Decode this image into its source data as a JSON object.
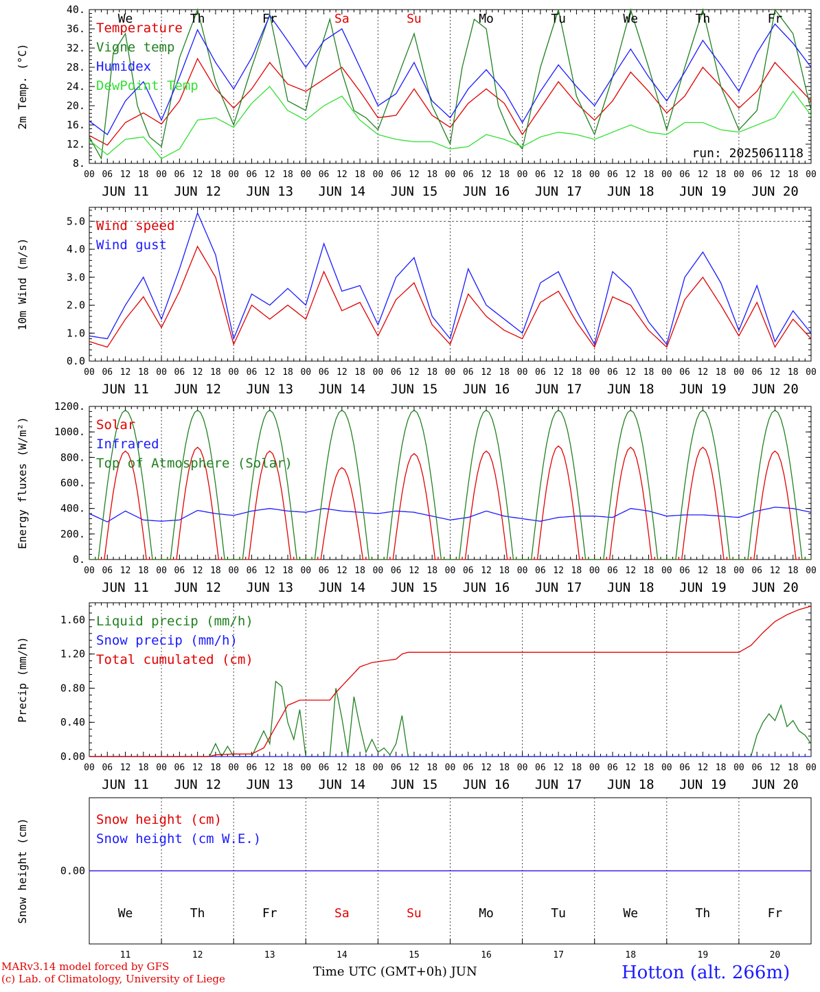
{
  "days": [
    "JUN 11",
    "JUN 12",
    "JUN 13",
    "JUN 14",
    "JUN 15",
    "JUN 16",
    "JUN 17",
    "JUN 18",
    "JUN 19",
    "JUN 20"
  ],
  "day_numbers": [
    "11",
    "12",
    "13",
    "14",
    "15",
    "16",
    "17",
    "18",
    "19",
    "20"
  ],
  "hour_ticks": [
    "00",
    "06",
    "12",
    "18"
  ],
  "final_tick": "00",
  "weekdays": [
    {
      "label": "We",
      "color": "#000000"
    },
    {
      "label": "Th",
      "color": "#000000"
    },
    {
      "label": "Fr",
      "color": "#000000"
    },
    {
      "label": "Sa",
      "color": "#e00000"
    },
    {
      "label": "Su",
      "color": "#e00000"
    },
    {
      "label": "Mo",
      "color": "#000000"
    },
    {
      "label": "Tu",
      "color": "#000000"
    },
    {
      "label": "We",
      "color": "#000000"
    },
    {
      "label": "Th",
      "color": "#000000"
    },
    {
      "label": "Fr",
      "color": "#000000"
    }
  ],
  "footer": {
    "credit_line1": "MARv3.14 model forced by GFS",
    "credit_line2": "(c) Lab. of Climatology, University of Liege",
    "time_axis": "Time UTC (GMT+0h) JUN",
    "station": "Hotton (alt. 266m)"
  },
  "chart_data": [
    {
      "type": "line",
      "ylabel": "2m Temp. (°C)",
      "ylim": [
        8,
        40
      ],
      "yticks": [
        "8.",
        "12.",
        "16.",
        "20.",
        "24.",
        "28.",
        "32.",
        "36.",
        "40."
      ],
      "run_label": "run: 2025061118",
      "x_unit": "hours since JUN 11 00 UTC",
      "series": [
        {
          "name": "Temperature",
          "color": "#e00000",
          "x": [
            0,
            6,
            12,
            18,
            24,
            30,
            36,
            42,
            48,
            54,
            60,
            66,
            72,
            78,
            84,
            90,
            96,
            102,
            108,
            114,
            120,
            126,
            132,
            138,
            144,
            150,
            156,
            162,
            168,
            174,
            180,
            186,
            192,
            198,
            204,
            210,
            216,
            222,
            228,
            234,
            240
          ],
          "values": [
            13.8,
            11.8,
            16.5,
            18.5,
            16.2,
            21,
            29.8,
            23.5,
            19.5,
            23.5,
            29,
            24.5,
            23,
            25.5,
            28,
            23,
            17.5,
            18,
            23.5,
            18,
            15.5,
            20.5,
            23.5,
            20.5,
            14,
            19.5,
            25,
            20.5,
            17,
            21,
            27,
            23,
            18.5,
            22,
            28,
            24,
            19.5,
            23,
            29,
            25,
            21
          ]
        },
        {
          "name": "Vigne temp",
          "color": "#208020",
          "x": [
            0,
            4,
            8,
            12,
            16,
            20,
            24,
            30,
            36,
            42,
            48,
            54,
            60,
            66,
            72,
            76,
            80,
            84,
            88,
            92,
            96,
            102,
            108,
            114,
            120,
            124,
            128,
            132,
            136,
            140,
            144,
            150,
            156,
            162,
            168,
            174,
            180,
            186,
            192,
            198,
            204,
            210,
            216,
            222,
            228,
            234,
            240
          ],
          "values": [
            13.5,
            9,
            31,
            35,
            20,
            13.5,
            11.5,
            30,
            40,
            25,
            16,
            28,
            39,
            21,
            19,
            30,
            38,
            27,
            19,
            17.5,
            15,
            25,
            35,
            20,
            12,
            28,
            38,
            36,
            20,
            14,
            11,
            28,
            40,
            22,
            14,
            26,
            40,
            28,
            15,
            28,
            40,
            24,
            15,
            19,
            40,
            35,
            19
          ]
        },
        {
          "name": "Humidex",
          "color": "#1a1aff",
          "x": [
            0,
            6,
            12,
            18,
            24,
            30,
            36,
            42,
            48,
            54,
            60,
            66,
            72,
            78,
            84,
            90,
            96,
            102,
            108,
            114,
            120,
            126,
            132,
            138,
            144,
            150,
            156,
            162,
            168,
            174,
            180,
            186,
            192,
            198,
            204,
            210,
            216,
            222,
            228,
            234,
            240
          ],
          "values": [
            16.8,
            14,
            21,
            25,
            17,
            26,
            35.8,
            29,
            23.5,
            30,
            38.8,
            33.5,
            28,
            33.5,
            36,
            28,
            20,
            22.5,
            29,
            21,
            17.5,
            23.5,
            27.5,
            23,
            16.5,
            23,
            28.5,
            24,
            20,
            26,
            31.8,
            26,
            21,
            27,
            33.6,
            28.5,
            23,
            31,
            37,
            33,
            28
          ]
        },
        {
          "name": "DewPoint Temp",
          "color": "#33e033",
          "x": [
            0,
            6,
            12,
            18,
            24,
            30,
            36,
            42,
            48,
            54,
            60,
            66,
            72,
            78,
            84,
            90,
            96,
            102,
            108,
            114,
            120,
            126,
            132,
            138,
            144,
            150,
            156,
            162,
            168,
            174,
            180,
            186,
            192,
            198,
            204,
            210,
            216,
            222,
            228,
            234,
            240
          ],
          "values": [
            12.8,
            9.8,
            13,
            13.5,
            9,
            11,
            17,
            17.5,
            15.5,
            20.5,
            24,
            19,
            17,
            20,
            22,
            17,
            14,
            13,
            12.5,
            12.5,
            11,
            11.5,
            14,
            13,
            11.5,
            13.5,
            14.5,
            14,
            13,
            14.5,
            16,
            14.5,
            14,
            16.5,
            16.5,
            15,
            14.5,
            16,
            17.5,
            23,
            18
          ]
        }
      ]
    },
    {
      "type": "line",
      "ylabel": "10m Wind (m/s)",
      "ylim": [
        0,
        5.5
      ],
      "yticks": [
        "0.0",
        "1.0",
        "2.0",
        "3.0",
        "4.0",
        "5.0"
      ],
      "ref_line": 5.0,
      "x_unit": "hours since JUN 11 00 UTC",
      "series": [
        {
          "name": "Wind speed",
          "color": "#e00000",
          "x": [
            0,
            6,
            12,
            18,
            24,
            30,
            36,
            42,
            48,
            54,
            60,
            66,
            72,
            78,
            84,
            90,
            96,
            102,
            108,
            114,
            120,
            126,
            132,
            138,
            144,
            150,
            156,
            162,
            168,
            174,
            180,
            186,
            192,
            198,
            204,
            210,
            216,
            222,
            228,
            234,
            240
          ],
          "values": [
            0.7,
            0.5,
            1.5,
            2.3,
            1.2,
            2.5,
            4.1,
            3.0,
            0.6,
            2.0,
            1.5,
            2.0,
            1.5,
            3.2,
            1.8,
            2.1,
            0.9,
            2.2,
            2.8,
            1.3,
            0.6,
            2.4,
            1.6,
            1.1,
            0.8,
            2.1,
            2.5,
            1.4,
            0.5,
            2.3,
            2.0,
            1.1,
            0.5,
            2.2,
            3.0,
            2.0,
            0.9,
            2.1,
            0.5,
            1.5,
            0.8
          ]
        },
        {
          "name": "Wind gust",
          "color": "#1a1aff",
          "x": [
            0,
            6,
            12,
            18,
            24,
            30,
            36,
            42,
            48,
            54,
            60,
            66,
            72,
            78,
            84,
            90,
            96,
            102,
            108,
            114,
            120,
            126,
            132,
            138,
            144,
            150,
            156,
            162,
            168,
            174,
            180,
            186,
            192,
            198,
            204,
            210,
            216,
            222,
            228,
            234,
            240
          ],
          "values": [
            0.9,
            0.8,
            2.0,
            3.0,
            1.5,
            3.3,
            5.3,
            3.8,
            0.8,
            2.4,
            2.0,
            2.6,
            2.0,
            4.2,
            2.5,
            2.7,
            1.3,
            3.0,
            3.7,
            1.6,
            0.8,
            3.3,
            2.0,
            1.5,
            1.0,
            2.8,
            3.2,
            1.8,
            0.6,
            3.2,
            2.6,
            1.4,
            0.6,
            3.0,
            3.9,
            2.8,
            1.1,
            2.7,
            0.7,
            1.8,
            1.0
          ]
        }
      ]
    },
    {
      "type": "line",
      "ylabel": "Energy fluxes (W/m²)",
      "ylim": [
        0,
        1200
      ],
      "yticks": [
        "0.",
        "200.",
        "400.",
        "600.",
        "800.",
        "1000.",
        "1200."
      ],
      "x_unit": "hours since JUN 11 00 UTC",
      "series": [
        {
          "name": "Solar",
          "color": "#e00000",
          "daily_peaks": [
            850,
            880,
            850,
            720,
            830,
            850,
            890,
            880,
            880,
            850
          ]
        },
        {
          "name": "Infrared",
          "color": "#1a1aff",
          "x": [
            0,
            6,
            12,
            18,
            24,
            30,
            36,
            42,
            48,
            54,
            60,
            66,
            72,
            78,
            84,
            90,
            96,
            102,
            108,
            114,
            120,
            126,
            132,
            138,
            144,
            150,
            156,
            162,
            168,
            174,
            180,
            186,
            192,
            198,
            204,
            210,
            216,
            222,
            228,
            234,
            240
          ],
          "values": [
            360,
            295,
            380,
            310,
            300,
            310,
            385,
            360,
            345,
            380,
            400,
            380,
            370,
            400,
            380,
            370,
            360,
            380,
            370,
            340,
            310,
            330,
            380,
            340,
            320,
            300,
            330,
            340,
            340,
            330,
            400,
            380,
            340,
            350,
            350,
            340,
            330,
            380,
            410,
            400,
            370
          ]
        },
        {
          "name": "Top of Atmosphere (Solar)",
          "color": "#208020",
          "daily_peaks": [
            1170,
            1170,
            1170,
            1170,
            1170,
            1170,
            1170,
            1170,
            1170,
            1170
          ]
        }
      ]
    },
    {
      "type": "line",
      "ylabel": "Precip (mm/h)",
      "ylim": [
        0,
        1.8
      ],
      "yticks": [
        "0.00",
        "0.40",
        "0.80",
        "1.20",
        "1.60"
      ],
      "x_unit": "hours since JUN 11 00 UTC",
      "series": [
        {
          "name": "Liquid precip (mm/h)",
          "color": "#208020",
          "x": [
            0,
            40,
            42,
            44,
            46,
            48,
            54,
            58,
            60,
            62,
            64,
            66,
            68,
            70,
            72,
            80,
            82,
            84,
            86,
            88,
            90,
            92,
            94,
            96,
            98,
            100,
            102,
            104,
            106,
            108,
            220,
            222,
            224,
            226,
            228,
            230,
            232,
            234,
            236,
            238,
            240
          ],
          "values": [
            0,
            0,
            0.15,
            0,
            0.12,
            0,
            0,
            0.3,
            0.15,
            0.88,
            0.82,
            0.4,
            0.2,
            0.55,
            0,
            0,
            0.8,
            0.45,
            0.02,
            0.7,
            0.35,
            0.05,
            0.2,
            0.05,
            0.1,
            0.02,
            0.15,
            0.48,
            0,
            0,
            0,
            0.25,
            0.4,
            0.5,
            0.42,
            0.6,
            0.35,
            0.42,
            0.3,
            0.25,
            0.15
          ]
        },
        {
          "name": "Snow precip (mm/h)",
          "color": "#1a1aff",
          "x": [
            0,
            240
          ],
          "values": [
            0,
            0
          ]
        },
        {
          "name": "Total cumulated (cm)",
          "color": "#e00000",
          "x": [
            0,
            40,
            42,
            48,
            54,
            58,
            62,
            66,
            70,
            72,
            80,
            82,
            86,
            90,
            94,
            98,
            102,
            104,
            106,
            110,
            120,
            200,
            216,
            220,
            224,
            228,
            232,
            236,
            240
          ],
          "values": [
            0,
            0,
            0.02,
            0.03,
            0.03,
            0.1,
            0.35,
            0.6,
            0.66,
            0.66,
            0.66,
            0.75,
            0.9,
            1.05,
            1.1,
            1.12,
            1.14,
            1.2,
            1.22,
            1.22,
            1.22,
            1.22,
            1.22,
            1.3,
            1.45,
            1.58,
            1.66,
            1.72,
            1.76
          ]
        }
      ]
    },
    {
      "type": "line",
      "ylabel": "Snow height (cm)",
      "ylim": [
        -1,
        1
      ],
      "yticks": [
        "0.00"
      ],
      "x_unit": "hours since JUN 11 00 UTC",
      "series": [
        {
          "name": "Snow height (cm)",
          "color": "#e00000",
          "x": [
            0,
            240
          ],
          "values": [
            0,
            0
          ]
        },
        {
          "name": "Snow height (cm W.E.)",
          "color": "#1a1aff",
          "x": [
            0,
            240
          ],
          "values": [
            0,
            0
          ]
        }
      ]
    }
  ]
}
